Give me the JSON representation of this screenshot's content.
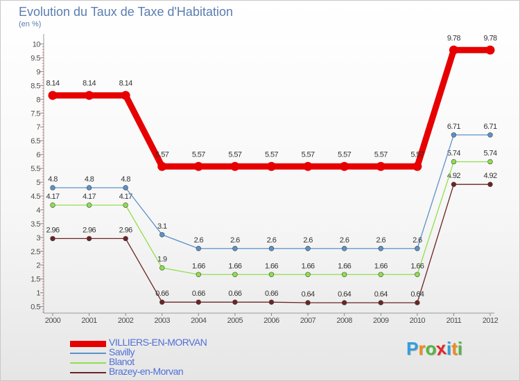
{
  "colors": {
    "title": "#5a7db0",
    "axis_text": "#4d4d4d",
    "label_text": "#333333",
    "grid": "#dddddd"
  },
  "chart_data": {
    "type": "line",
    "title": "Evolution du Taux de Taxe d'Habitation",
    "unit_label": "(en %)",
    "xlabel": "",
    "ylabel": "(en %)",
    "x": [
      "2000",
      "2001",
      "2002",
      "2003",
      "2004",
      "2005",
      "2006",
      "2007",
      "2008",
      "2009",
      "2010",
      "2011",
      "2012"
    ],
    "ylim": [
      0,
      10
    ],
    "yticks": [
      "0.5",
      "1",
      "1.5",
      "2",
      "2.5",
      "3",
      "3.5",
      "4",
      "4.5",
      "5",
      "5.5",
      "6",
      "6.5",
      "7",
      "7.5",
      "8",
      "8.5",
      "9",
      "9.5",
      "10"
    ],
    "series": [
      {
        "name": "VILLIERS-EN-MORVAN",
        "color": "#e60000",
        "values": [
          8.14,
          8.14,
          8.14,
          5.57,
          5.57,
          5.57,
          5.57,
          5.57,
          5.57,
          5.57,
          5.57,
          9.78,
          9.78
        ],
        "labels": [
          "8.14",
          "8.14",
          "8.14",
          "5.57",
          "5.57",
          "5.57",
          "5.57",
          "5.57",
          "5.57",
          "5.57",
          "5.57",
          "9.78",
          "9.78"
        ]
      },
      {
        "name": "Savilly",
        "color": "#5b92c8",
        "values": [
          4.8,
          4.8,
          4.8,
          3.1,
          2.6,
          2.6,
          2.6,
          2.6,
          2.6,
          2.6,
          2.6,
          6.71,
          6.71
        ],
        "labels": [
          "4.8",
          "4.8",
          "4.8",
          "3.1",
          "2.6",
          "2.6",
          "2.6",
          "2.6",
          "2.6",
          "2.6",
          "2.6",
          "6.71",
          "6.71"
        ]
      },
      {
        "name": "Blanot",
        "color": "#8fdf4c",
        "values": [
          4.17,
          4.17,
          4.17,
          1.9,
          1.66,
          1.66,
          1.66,
          1.66,
          1.66,
          1.66,
          1.66,
          5.74,
          5.74
        ],
        "labels": [
          "4.17",
          "4.17",
          "4.17",
          "1.9",
          "1.66",
          "1.66",
          "1.66",
          "1.66",
          "1.66",
          "1.66",
          "1.66",
          "5.74",
          "5.74"
        ]
      },
      {
        "name": "Brazey-en-Morvan",
        "color": "#6b2424",
        "values": [
          2.96,
          2.96,
          2.96,
          0.66,
          0.66,
          0.66,
          0.66,
          0.64,
          0.64,
          0.64,
          0.64,
          4.92,
          4.92
        ],
        "labels": [
          "2.96",
          "2.96",
          "2.96",
          "0.66",
          "0.66",
          "0.66",
          "0.66",
          "0.64",
          "0.64",
          "0.64",
          "0.64",
          "4.92",
          "4.92"
        ]
      }
    ],
    "legend": "bottom-left",
    "grid": false
  },
  "logo": {
    "letters": [
      "P",
      "r",
      "o",
      "x",
      "i",
      "t",
      "i"
    ],
    "colors": [
      "#2f9fe0",
      "#f08a1a",
      "#53b63f",
      "#e6262a",
      "#2f9fe0",
      "#f08a1a",
      "#53b63f"
    ]
  }
}
